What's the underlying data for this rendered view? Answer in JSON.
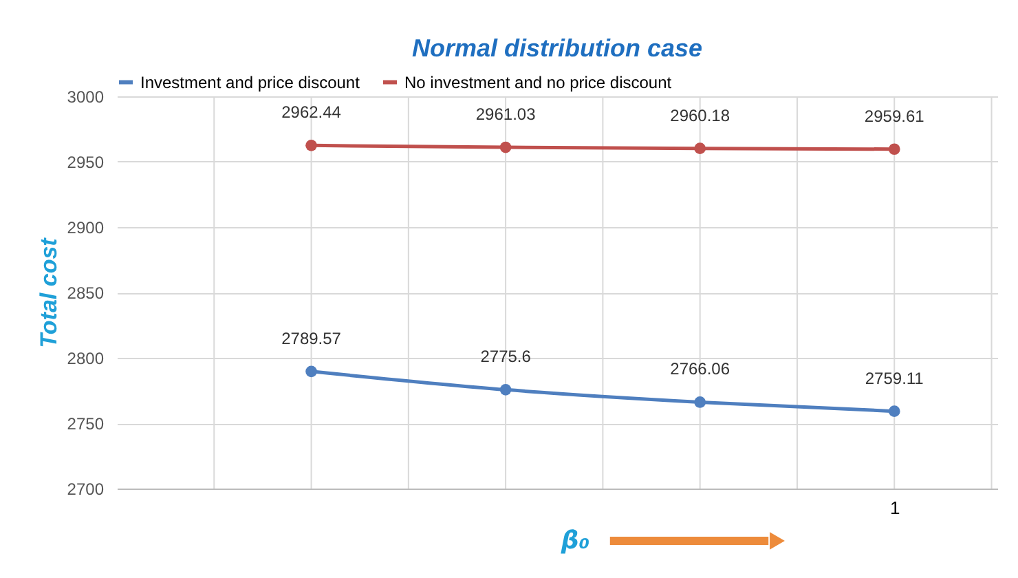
{
  "chart_data": {
    "type": "line",
    "title": "Normal distribution case",
    "xlabel": "β₀",
    "ylabel": "Total cost",
    "categories": [
      null,
      null,
      null,
      "1"
    ],
    "series": [
      {
        "name": "Investment and price discount",
        "color": "#4f7fbf",
        "values": [
          2789.57,
          2775.6,
          2766.06,
          2759.11
        ]
      },
      {
        "name": "No investment and no price discount",
        "color": "#c0504d",
        "values": [
          2962.44,
          2961.03,
          2960.18,
          2959.61
        ]
      }
    ],
    "ylim": [
      2700,
      3000
    ],
    "yticks": [
      2700,
      2750,
      2800,
      2850,
      2900,
      2950,
      3000
    ],
    "grid": true,
    "legend": "top",
    "marker": "circle",
    "line_style": "solid",
    "data_labels": true
  }
}
